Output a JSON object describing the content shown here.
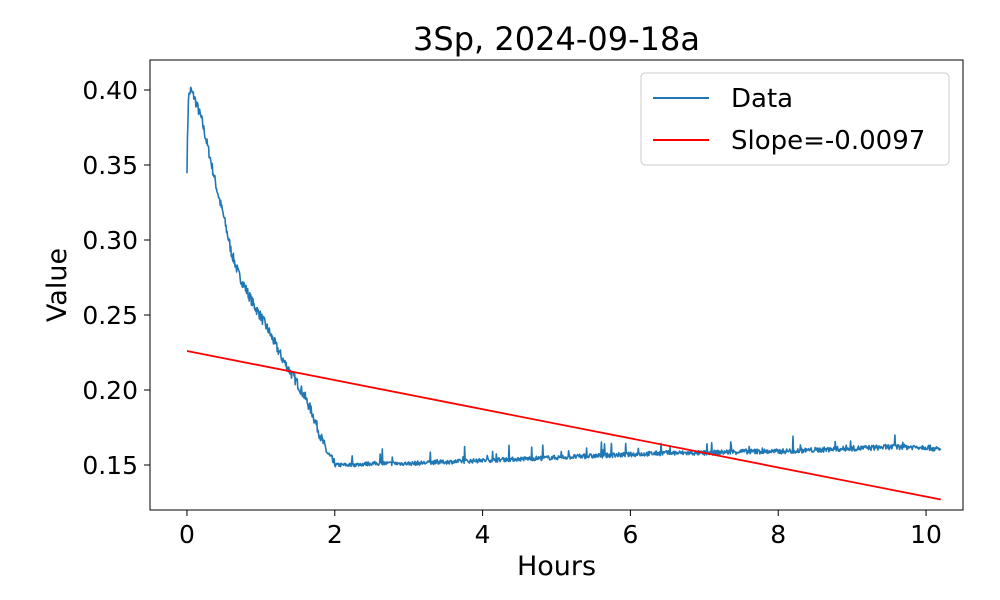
{
  "chart_data": {
    "type": "line",
    "title": "3Sp, 2024-09-18a",
    "xlabel": "Hours",
    "ylabel": "Value",
    "xlim": [
      -0.5,
      10.5
    ],
    "ylim": [
      0.12,
      0.42
    ],
    "xticks": [
      0,
      2,
      4,
      6,
      8,
      10
    ],
    "yticks": [
      0.15,
      0.2,
      0.25,
      0.3,
      0.35,
      0.4
    ],
    "xtick_labels": [
      "0",
      "2",
      "4",
      "6",
      "8",
      "10"
    ],
    "ytick_labels": [
      "0.15",
      "0.20",
      "0.25",
      "0.30",
      "0.35",
      "0.40"
    ],
    "grid": false,
    "legend_position": "top-right",
    "series": [
      {
        "name": "Data",
        "color": "#1f77b4",
        "x": [
          0,
          0.02,
          0.05,
          0.1,
          0.2,
          0.3,
          0.4,
          0.5,
          0.6,
          0.7,
          0.8,
          0.9,
          1.0,
          1.1,
          1.2,
          1.3,
          1.4,
          1.5,
          1.6,
          1.7,
          1.8,
          1.9,
          2.0,
          2.2,
          2.5,
          3.0,
          3.5,
          4.0,
          4.5,
          5.0,
          5.5,
          6.0,
          6.5,
          7.0,
          7.5,
          8.0,
          8.5,
          9.0,
          9.5,
          10.0,
          10.2
        ],
        "y": [
          0.348,
          0.395,
          0.4,
          0.395,
          0.38,
          0.358,
          0.335,
          0.315,
          0.292,
          0.277,
          0.267,
          0.257,
          0.249,
          0.24,
          0.23,
          0.22,
          0.212,
          0.204,
          0.195,
          0.184,
          0.17,
          0.158,
          0.15,
          0.15,
          0.151,
          0.151,
          0.152,
          0.153,
          0.154,
          0.155,
          0.156,
          0.157,
          0.158,
          0.158,
          0.159,
          0.159,
          0.16,
          0.161,
          0.162,
          0.162,
          0.16
        ]
      },
      {
        "name": "Slope=-0.0097",
        "color": "#ff0000",
        "x": [
          0,
          10.2
        ],
        "y": [
          0.226,
          0.127
        ]
      }
    ]
  }
}
